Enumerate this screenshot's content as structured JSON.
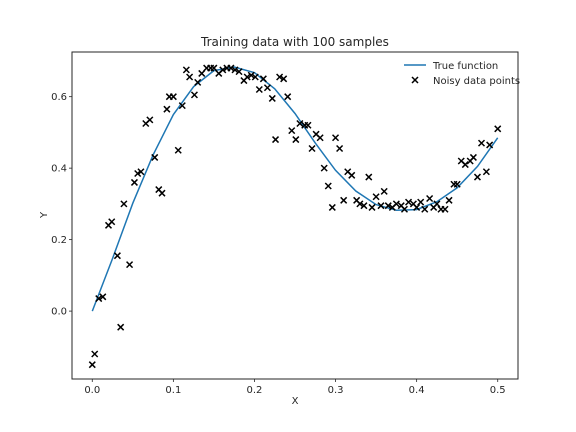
{
  "chart_data": {
    "type": "scatter",
    "title": "Training data with 100 samples",
    "xlabel": "X",
    "ylabel": "Y",
    "xlim": [
      -0.025,
      0.525
    ],
    "ylim": [
      -0.19,
      0.725
    ],
    "xticks": [
      "0.0",
      "0.1",
      "0.2",
      "0.3",
      "0.4",
      "0.5"
    ],
    "xtick_values": [
      0.0,
      0.1,
      0.2,
      0.3,
      0.4,
      0.5
    ],
    "yticks": [
      "0.0",
      "0.2",
      "0.4",
      "0.6"
    ],
    "ytick_values": [
      0.0,
      0.2,
      0.4,
      0.6
    ],
    "grid": false,
    "legend_position": "top-right",
    "line_color": "#1f77b4",
    "marker_color": "#000000",
    "series": [
      {
        "name": "True function",
        "kind": "line",
        "x": [
          0.0,
          0.025,
          0.05,
          0.075,
          0.1,
          0.125,
          0.15,
          0.175,
          0.2,
          0.225,
          0.25,
          0.275,
          0.3,
          0.325,
          0.35,
          0.375,
          0.4,
          0.425,
          0.45,
          0.475,
          0.5
        ],
        "y": [
          0.0,
          0.147,
          0.302,
          0.437,
          0.55,
          0.628,
          0.673,
          0.683,
          0.667,
          0.622,
          0.553,
          0.47,
          0.394,
          0.336,
          0.298,
          0.282,
          0.284,
          0.306,
          0.345,
          0.405,
          0.485
        ]
      },
      {
        "name": "Noisy data points",
        "kind": "scatter",
        "x": [
          0.0,
          0.003,
          0.008,
          0.013,
          0.02,
          0.024,
          0.031,
          0.035,
          0.039,
          0.046,
          0.052,
          0.056,
          0.06,
          0.066,
          0.071,
          0.077,
          0.082,
          0.086,
          0.092,
          0.095,
          0.1,
          0.106,
          0.111,
          0.116,
          0.12,
          0.126,
          0.13,
          0.135,
          0.141,
          0.146,
          0.15,
          0.156,
          0.161,
          0.166,
          0.171,
          0.176,
          0.181,
          0.187,
          0.191,
          0.196,
          0.201,
          0.206,
          0.211,
          0.216,
          0.222,
          0.226,
          0.231,
          0.236,
          0.241,
          0.246,
          0.251,
          0.256,
          0.262,
          0.266,
          0.271,
          0.276,
          0.281,
          0.286,
          0.291,
          0.296,
          0.3,
          0.305,
          0.31,
          0.315,
          0.32,
          0.326,
          0.33,
          0.335,
          0.341,
          0.345,
          0.35,
          0.356,
          0.36,
          0.365,
          0.37,
          0.375,
          0.381,
          0.385,
          0.39,
          0.396,
          0.4,
          0.405,
          0.41,
          0.416,
          0.421,
          0.425,
          0.43,
          0.435,
          0.44,
          0.446,
          0.45,
          0.455,
          0.46,
          0.466,
          0.47,
          0.475,
          0.48,
          0.486,
          0.49,
          0.5
        ],
        "y": [
          -0.15,
          -0.12,
          0.035,
          0.04,
          0.24,
          0.25,
          0.155,
          -0.045,
          0.3,
          0.13,
          0.36,
          0.385,
          0.39,
          0.525,
          0.535,
          0.43,
          0.34,
          0.33,
          0.565,
          0.6,
          0.6,
          0.45,
          0.575,
          0.675,
          0.655,
          0.605,
          0.64,
          0.665,
          0.68,
          0.68,
          0.68,
          0.665,
          0.675,
          0.68,
          0.68,
          0.675,
          0.67,
          0.645,
          0.655,
          0.66,
          0.655,
          0.62,
          0.65,
          0.625,
          0.595,
          0.48,
          0.655,
          0.65,
          0.6,
          0.505,
          0.48,
          0.525,
          0.52,
          0.52,
          0.455,
          0.495,
          0.485,
          0.4,
          0.35,
          0.29,
          0.485,
          0.455,
          0.31,
          0.39,
          0.38,
          0.31,
          0.3,
          0.295,
          0.375,
          0.29,
          0.32,
          0.295,
          0.335,
          0.295,
          0.29,
          0.3,
          0.295,
          0.285,
          0.305,
          0.3,
          0.29,
          0.305,
          0.285,
          0.315,
          0.29,
          0.3,
          0.285,
          0.285,
          0.31,
          0.355,
          0.355,
          0.42,
          0.41,
          0.42,
          0.43,
          0.375,
          0.47,
          0.39,
          0.465,
          0.51
        ]
      }
    ]
  }
}
